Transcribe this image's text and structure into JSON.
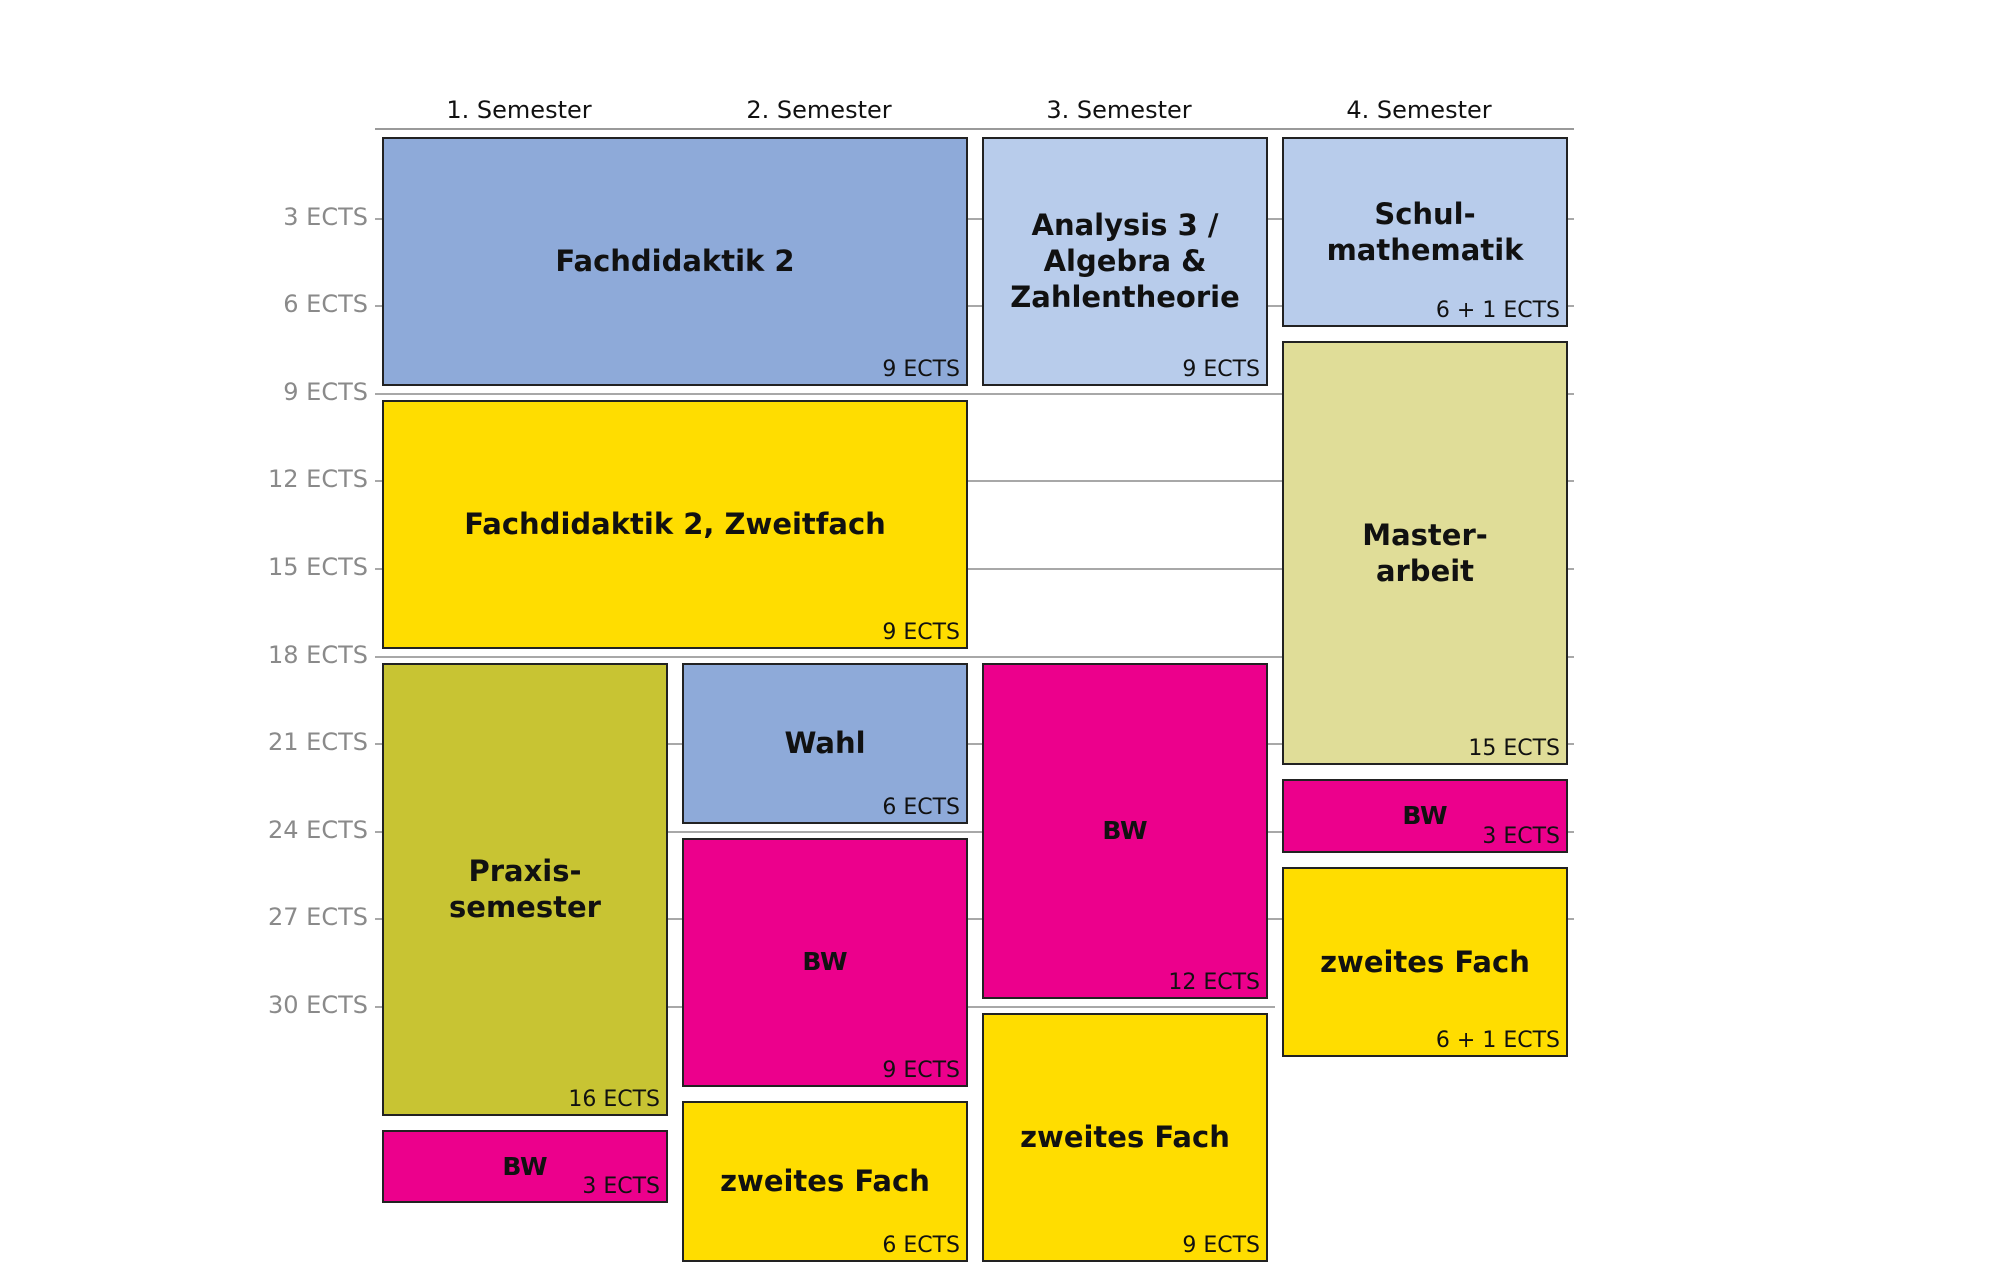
{
  "semesters": [
    "1. Semester",
    "2. Semester",
    "3. Semester",
    "4. Semester"
  ],
  "y_axis_labels": [
    "3 ECTS",
    "6 ECTS",
    "9 ECTS",
    "12 ECTS",
    "15 ECTS",
    "18 ECTS",
    "21 ECTS",
    "24 ECTS",
    "27 ECTS",
    "30 ECTS"
  ],
  "colors": {
    "fachdidaktik": "#8eaad9",
    "zweitfach": "#ffdd00",
    "praxis": "#c8c433",
    "wahl": "#8eaad9",
    "bw": "#ec008c",
    "analysis": "#b8cceb",
    "schulmathe": "#b8cceb",
    "masterarbeit": "#e0dd98"
  },
  "modules": [
    {
      "title": "Fachdidaktik 2",
      "ects": "9 ECTS",
      "semester_start": 1,
      "semester_span": 2,
      "ects_start": 0,
      "ects_size": 9,
      "color": "#8eaad9"
    },
    {
      "title": "Fachdidaktik 2, Zweitfach",
      "ects": "9 ECTS",
      "semester_start": 1,
      "semester_span": 2,
      "ects_start": 9,
      "ects_size": 9,
      "color": "#ffdd00"
    },
    {
      "title": "Praxis-\nsemester",
      "ects": "16 ECTS",
      "semester_start": 1,
      "semester_span": 1,
      "ects_start": 18,
      "ects_size": 16,
      "color": "#c8c433"
    },
    {
      "title": "BW",
      "ects": "3 ECTS",
      "semester_start": 1,
      "semester_span": 1,
      "ects_start": 34,
      "ects_size": 3,
      "color": "#ec008c",
      "small": true
    },
    {
      "title": "Wahl",
      "ects": "6 ECTS",
      "semester_start": 2,
      "semester_span": 1,
      "ects_start": 18,
      "ects_size": 6,
      "color": "#8eaad9"
    },
    {
      "title": "BW",
      "ects": "9 ECTS",
      "semester_start": 2,
      "semester_span": 1,
      "ects_start": 24,
      "ects_size": 9,
      "color": "#ec008c",
      "small": true
    },
    {
      "title": "zweites Fach",
      "ects": "6 ECTS",
      "semester_start": 2,
      "semester_span": 1,
      "ects_start": 33,
      "ects_size": 6,
      "color": "#ffdd00"
    },
    {
      "title": "Analysis 3 /\nAlgebra &\nZahlentheorie",
      "ects": "9 ECTS",
      "semester_start": 3,
      "semester_span": 1,
      "ects_start": 0,
      "ects_size": 9,
      "color": "#b8cceb"
    },
    {
      "title": "BW",
      "ects": "12 ECTS",
      "semester_start": 3,
      "semester_span": 1,
      "ects_start": 18,
      "ects_size": 12,
      "color": "#ec008c",
      "small": true
    },
    {
      "title": "zweites Fach",
      "ects": "9 ECTS",
      "semester_start": 3,
      "semester_span": 1,
      "ects_start": 30,
      "ects_size": 9,
      "color": "#ffdd00"
    },
    {
      "title": "Schul-\nmathematik",
      "ects": "6 + 1 ECTS",
      "semester_start": 4,
      "semester_span": 1,
      "ects_start": 0,
      "ects_size": 7,
      "color": "#b8cceb"
    },
    {
      "title": "Master-\narbeit",
      "ects": "15 ECTS",
      "semester_start": 4,
      "semester_span": 1,
      "ects_start": 7,
      "ects_size": 15,
      "color": "#e0dd98"
    },
    {
      "title": "BW",
      "ects": "3 ECTS",
      "semester_start": 4,
      "semester_span": 1,
      "ects_start": 22,
      "ects_size": 3,
      "color": "#ec008c",
      "small": true
    },
    {
      "title": "zweites Fach",
      "ects": "6 + 1 ECTS",
      "semester_start": 4,
      "semester_span": 1,
      "ects_start": 25,
      "ects_size": 7,
      "color": "#ffdd00"
    }
  ]
}
